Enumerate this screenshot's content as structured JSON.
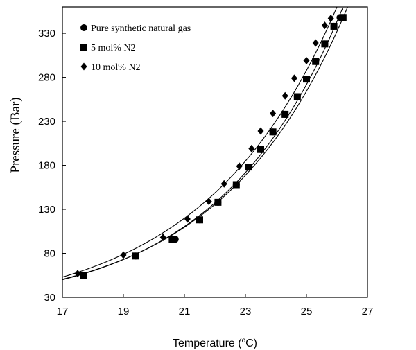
{
  "chart_data": {
    "type": "scatter",
    "title": "",
    "xlabel": "Temperature (",
    "xlabel_sup": "o",
    "xlabel_unit": "C)",
    "ylabel": "Pressure (Bar)",
    "xlim": [
      17,
      27
    ],
    "ylim": [
      30,
      360
    ],
    "xticks": [
      17,
      19,
      21,
      23,
      25,
      27
    ],
    "yticks": [
      30,
      80,
      130,
      180,
      230,
      280,
      330
    ],
    "grid": false,
    "legend_position": "top-left",
    "series": [
      {
        "name": "Pure synthetic natural gas",
        "marker": "circle",
        "x": [
          17.7,
          19.4,
          20.7,
          21.5,
          22.1,
          22.7,
          23.1,
          23.5,
          23.9,
          24.3,
          24.7,
          25.0,
          25.3,
          25.6,
          25.9,
          26.1
        ],
        "y": [
          55,
          77,
          96,
          118,
          138,
          158,
          178,
          198,
          218,
          238,
          258,
          278,
          298,
          318,
          338,
          348
        ]
      },
      {
        "name": "5 mol% N2",
        "marker": "square",
        "x": [
          17.7,
          19.4,
          20.6,
          21.5,
          22.1,
          22.7,
          23.1,
          23.5,
          23.9,
          24.3,
          24.7,
          25.0,
          25.3,
          25.6,
          25.9,
          26.2
        ],
        "y": [
          55,
          77,
          96,
          118,
          138,
          158,
          178,
          198,
          218,
          238,
          258,
          278,
          298,
          318,
          338,
          348
        ]
      },
      {
        "name": "10 mol% N2",
        "marker": "diamond",
        "x": [
          17.5,
          19.0,
          20.3,
          21.1,
          21.8,
          22.3,
          22.8,
          23.2,
          23.5,
          23.9,
          24.3,
          24.6,
          25.0,
          25.3,
          25.6,
          25.8
        ],
        "y": [
          57,
          78,
          98,
          119,
          139,
          159,
          179,
          199,
          219,
          239,
          259,
          279,
          299,
          319,
          339,
          347
        ]
      }
    ],
    "curves": [
      {
        "name": "fit-pure",
        "x0": 17.0,
        "y0": 50.0,
        "x1": 26.2,
        "y1": 360.0,
        "k": 0.245
      },
      {
        "name": "fit-5mol",
        "x0": 17.0,
        "y0": 50.5,
        "x1": 26.35,
        "y1": 360.0,
        "k": 0.24
      },
      {
        "name": "fit-10mol",
        "x0": 17.0,
        "y0": 53.0,
        "x1": 26.0,
        "y1": 360.0,
        "k": 0.23
      }
    ]
  }
}
